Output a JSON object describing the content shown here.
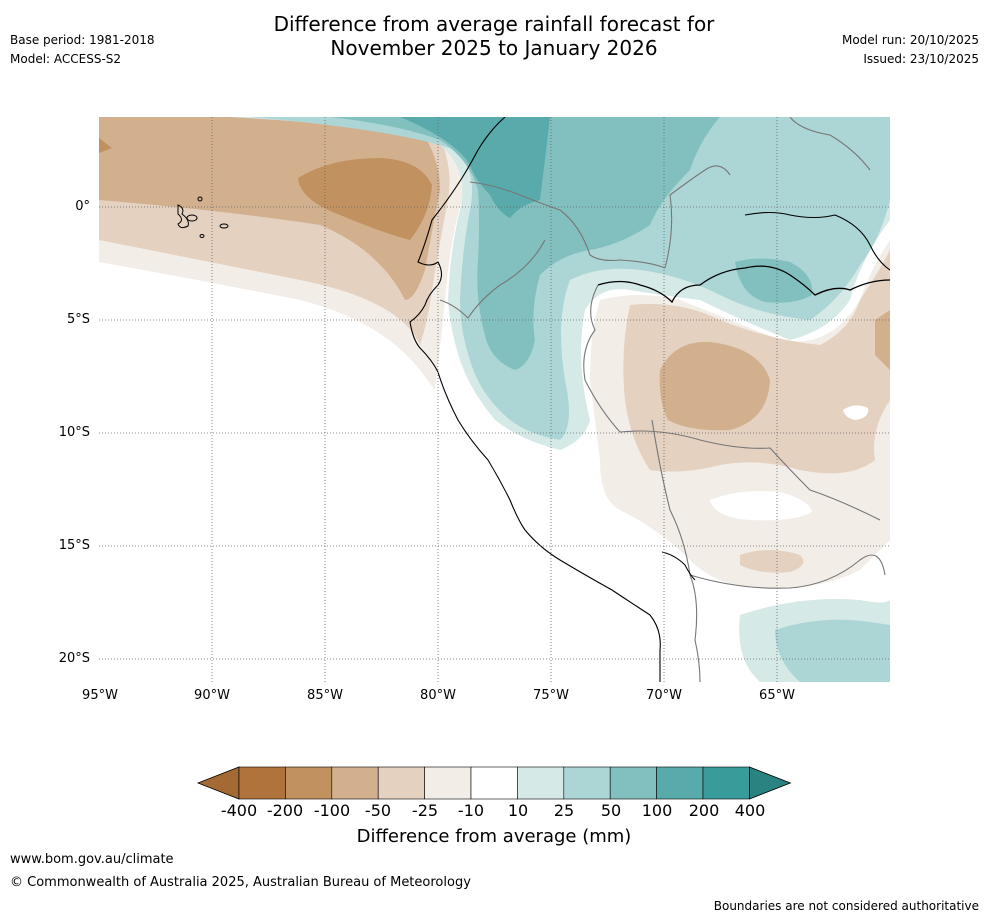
{
  "header": {
    "base_period": "Base period: 1981-2018",
    "model": "Model: ACCESS-S2",
    "title_line1": "Difference from average rainfall forecast for",
    "title_line2": "November 2025 to January 2026",
    "model_run": "Model run: 20/10/2025",
    "issued": "Issued: 23/10/2025"
  },
  "map": {
    "lat_labels": [
      "0°",
      "5°S",
      "10°S",
      "15°S",
      "20°S"
    ],
    "lon_labels": [
      "95°W",
      "90°W",
      "85°W",
      "80°W",
      "75°W",
      "70°W",
      "65°W"
    ]
  },
  "colorbar": {
    "title": "Difference from average (mm)",
    "tick_labels": [
      "-400",
      "-200",
      "-100",
      "-50",
      "-25",
      "-10",
      "10",
      "25",
      "50",
      "100",
      "200",
      "400"
    ],
    "colors": [
      "#a56a33",
      "#b0733c",
      "#c1925f",
      "#d2b08e",
      "#e4d1c0",
      "#f2ede7",
      "#ffffff",
      "#d5e9e7",
      "#acd6d5",
      "#82c0bf",
      "#59aaaa",
      "#389d9a",
      "#2a8281"
    ]
  },
  "footer": {
    "url": "www.bom.gov.au/climate",
    "copyright": "© Commonwealth of Australia 2025, Australian Bureau of Meteorology",
    "disclaimer": "Boundaries are not considered authoritative"
  }
}
